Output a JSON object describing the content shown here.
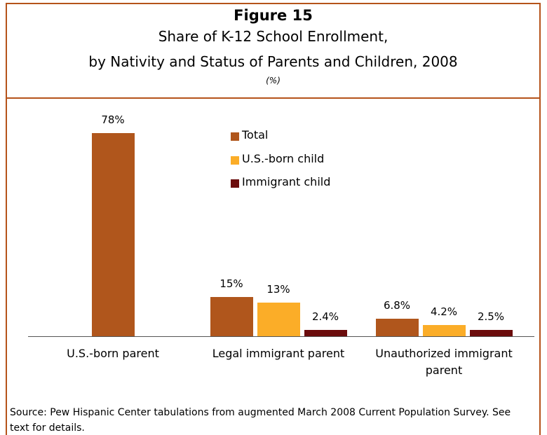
{
  "chart_data": {
    "type": "bar",
    "title": "Figure 15",
    "subtitle": [
      "Share of K-12 School Enrollment,",
      "by Nativity and Status of Parents and Children, 2008"
    ],
    "unit_note": "(%)",
    "categories": [
      "U.S.-born parent",
      "Legal immigrant parent",
      "Unauthorized immigrant parent"
    ],
    "series": [
      {
        "name": "Total",
        "color": "#b0561c",
        "values": [
          78,
          15,
          6.8
        ],
        "value_labels": [
          "78%",
          "15%",
          "6.8%"
        ]
      },
      {
        "name": "U.S.-born child",
        "color": "#fbad28",
        "values": [
          null,
          13,
          4.2
        ],
        "value_labels": [
          null,
          "13%",
          "4.2%"
        ]
      },
      {
        "name": "Immigrant child",
        "color": "#6b0c0c",
        "values": [
          null,
          2.4,
          2.5
        ],
        "value_labels": [
          null,
          "2.4%",
          "2.5%"
        ]
      }
    ],
    "legend": "top",
    "source": "Source:  Pew Hispanic Center tabulations from augmented March 2008 Current Population Survey.  See text for details."
  }
}
